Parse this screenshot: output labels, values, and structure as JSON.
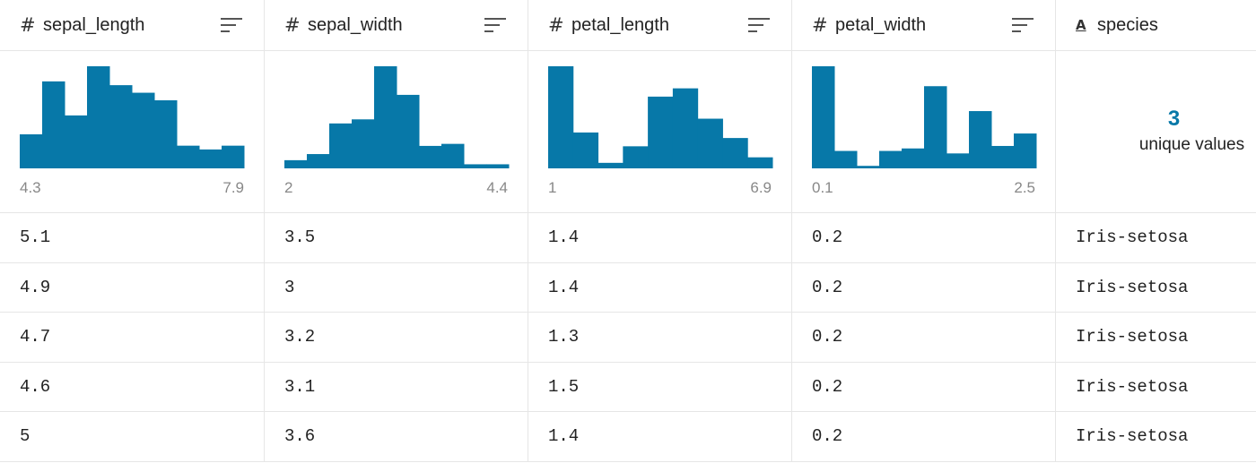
{
  "columns": [
    {
      "name": "sepal_length",
      "type_icon": "#",
      "type": "numeric"
    },
    {
      "name": "sepal_width",
      "type_icon": "#",
      "type": "numeric"
    },
    {
      "name": "petal_length",
      "type_icon": "#",
      "type": "numeric"
    },
    {
      "name": "petal_width",
      "type_icon": "#",
      "type": "numeric"
    },
    {
      "name": "species",
      "type_icon": "A",
      "type": "text"
    }
  ],
  "accent_color": "#0778a8",
  "chart_data": [
    {
      "type": "bar",
      "column": "sepal_length",
      "x_min": "4.3",
      "x_max": "7.9",
      "values": [
        9,
        23,
        14,
        27,
        22,
        20,
        18,
        6,
        5,
        6
      ]
    },
    {
      "type": "bar",
      "column": "sepal_width",
      "x_min": "2",
      "x_max": "4.4",
      "values": [
        4,
        7,
        22,
        24,
        50,
        36,
        11,
        12,
        2,
        2
      ]
    },
    {
      "type": "bar",
      "column": "petal_length",
      "x_min": "1",
      "x_max": "6.9",
      "values": [
        37,
        13,
        2,
        8,
        26,
        29,
        18,
        11,
        4
      ]
    },
    {
      "type": "bar",
      "column": "petal_width",
      "x_min": "0.1",
      "x_max": "2.5",
      "values": [
        41,
        7,
        1,
        7,
        8,
        33,
        6,
        23,
        9,
        14
      ]
    }
  ],
  "species_summary": {
    "count": "3",
    "label": "unique values"
  },
  "rows": [
    [
      "5.1",
      "3.5",
      "1.4",
      "0.2",
      "Iris-setosa"
    ],
    [
      "4.9",
      "3",
      "1.4",
      "0.2",
      "Iris-setosa"
    ],
    [
      "4.7",
      "3.2",
      "1.3",
      "0.2",
      "Iris-setosa"
    ],
    [
      "4.6",
      "3.1",
      "1.5",
      "0.2",
      "Iris-setosa"
    ],
    [
      "5",
      "3.6",
      "1.4",
      "0.2",
      "Iris-setosa"
    ]
  ]
}
